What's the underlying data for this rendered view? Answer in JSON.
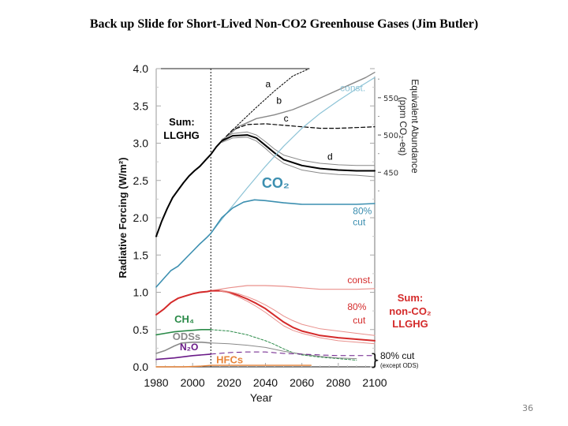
{
  "slide": {
    "title": "Back up Slide for Short-Lived Non-CO2 Greenhouse Gases  (Jim Butler)",
    "page_number": "36"
  },
  "colors": {
    "black": "#000000",
    "gray": "#888888",
    "co2": "#3c8fb0",
    "co2_light": "#8cc3d6",
    "nonco2": "#d42a2a",
    "nonco2_light": "#e9908c",
    "ch4": "#2a8a48",
    "ods": "#8a8a8a",
    "n2o": "#6a1a88",
    "hfc": "#e8853a"
  },
  "chart_data": {
    "type": "line",
    "title": "",
    "xlabel": "Year",
    "ylabel": "Radiative Forcing (W/m²)",
    "y2label": "Equivalent Abundance",
    "y2label_sub": "(ppm CO₂-eq)",
    "xlim": [
      1980,
      2100
    ],
    "ylim": [
      0.0,
      4.0
    ],
    "xticks": [
      1980,
      2000,
      2020,
      2040,
      2060,
      2080,
      2100
    ],
    "xtick_labels": [
      "1980",
      "2000",
      "2020",
      "2040",
      "2060",
      "2080",
      "2100"
    ],
    "yticks": [
      0.0,
      0.5,
      1.0,
      1.5,
      2.0,
      2.5,
      3.0,
      3.5,
      4.0
    ],
    "ytick_labels": [
      "0.0",
      "0.5",
      "1.0",
      "1.5",
      "2.0",
      "2.5",
      "3.0",
      "3.5",
      "4.0"
    ],
    "y2ticks": [
      {
        "ppm": 550,
        "rf": 3.61,
        "label": "550"
      },
      {
        "ppm": 500,
        "rf": 3.11,
        "label": "500"
      },
      {
        "ppm": 450,
        "rf": 2.61,
        "label": "450"
      }
    ],
    "vline_year": 2010,
    "series": [
      {
        "name": "Sum LLGHG (observed)",
        "color": "black",
        "width": 2,
        "dash": "",
        "x": [
          1980,
          1983,
          1986,
          1989,
          1992,
          1995,
          1998,
          2001,
          2004,
          2007,
          2010,
          2013,
          2016
        ],
        "y": [
          1.75,
          1.95,
          2.12,
          2.27,
          2.37,
          2.47,
          2.56,
          2.63,
          2.69,
          2.77,
          2.85,
          2.95,
          3.03
        ]
      },
      {
        "name": "a",
        "color": "black",
        "width": 1,
        "dash": "2,2",
        "x": [
          2016,
          2025,
          2035,
          2045,
          2055,
          2064
        ],
        "y": [
          3.03,
          3.25,
          3.48,
          3.7,
          3.9,
          4.0
        ]
      },
      {
        "name": "b",
        "color": "gray",
        "width": 1.4,
        "dash": "",
        "x": [
          2016,
          2025,
          2035,
          2045,
          2055,
          2065,
          2075,
          2085,
          2095,
          2100
        ],
        "y": [
          3.03,
          3.22,
          3.33,
          3.38,
          3.45,
          3.55,
          3.66,
          3.77,
          3.88,
          3.95
        ]
      },
      {
        "name": "c",
        "color": "black",
        "width": 1.2,
        "dash": "5,3",
        "x": [
          2016,
          2022,
          2030,
          2040,
          2050,
          2060,
          2070,
          2080,
          2090,
          2100
        ],
        "y": [
          3.03,
          3.18,
          3.25,
          3.26,
          3.24,
          3.22,
          3.2,
          3.2,
          3.21,
          3.22
        ]
      },
      {
        "name": "d",
        "color": "black",
        "width": 2,
        "dash": "",
        "x": [
          2016,
          2022,
          2030,
          2035,
          2040,
          2045,
          2050,
          2060,
          2070,
          2080,
          2090,
          2100
        ],
        "y": [
          3.03,
          3.1,
          3.11,
          3.07,
          2.97,
          2.87,
          2.78,
          2.7,
          2.66,
          2.64,
          2.63,
          2.63
        ]
      },
      {
        "name": "d upper",
        "color": "gray",
        "width": 1,
        "dash": "",
        "x": [
          2016,
          2022,
          2030,
          2035,
          2040,
          2045,
          2050,
          2060,
          2070,
          2080,
          2090,
          2100
        ],
        "y": [
          3.05,
          3.13,
          3.15,
          3.11,
          3.02,
          2.92,
          2.84,
          2.77,
          2.73,
          2.71,
          2.7,
          2.7
        ]
      },
      {
        "name": "d lower",
        "color": "gray",
        "width": 1,
        "dash": "",
        "x": [
          2016,
          2022,
          2030,
          2035,
          2040,
          2045,
          2050,
          2060,
          2070,
          2080,
          2090,
          2100
        ],
        "y": [
          3.01,
          3.07,
          3.08,
          3.03,
          2.93,
          2.82,
          2.73,
          2.64,
          2.6,
          2.58,
          2.57,
          2.55
        ]
      },
      {
        "name": "CO2 observed",
        "color": "co2",
        "width": 1.6,
        "dash": "",
        "x": [
          1980,
          1984,
          1988,
          1992,
          1996,
          2000,
          2004,
          2008,
          2010
        ],
        "y": [
          1.07,
          1.18,
          1.29,
          1.35,
          1.45,
          1.55,
          1.65,
          1.74,
          1.79
        ]
      },
      {
        "name": "CO2 const.",
        "color": "co2_light",
        "width": 1.2,
        "dash": "",
        "x": [
          2010,
          2020,
          2030,
          2040,
          2050,
          2060,
          2070,
          2080,
          2090,
          2100
        ],
        "y": [
          1.79,
          2.1,
          2.4,
          2.69,
          2.96,
          3.2,
          3.4,
          3.57,
          3.73,
          3.88
        ]
      },
      {
        "name": "CO2 80% cut",
        "color": "co2",
        "width": 1.6,
        "dash": "",
        "x": [
          2010,
          2016,
          2022,
          2028,
          2034,
          2040,
          2050,
          2060,
          2070,
          2080,
          2090,
          2100
        ],
        "y": [
          1.79,
          2.0,
          2.13,
          2.21,
          2.24,
          2.23,
          2.2,
          2.18,
          2.18,
          2.18,
          2.18,
          2.19
        ]
      },
      {
        "name": "Sum non-CO2 observed",
        "color": "nonco2",
        "width": 2,
        "dash": "",
        "x": [
          1980,
          1984,
          1988,
          1992,
          1996,
          2000,
          2004,
          2008,
          2010
        ],
        "y": [
          0.7,
          0.77,
          0.86,
          0.92,
          0.95,
          0.98,
          1.0,
          1.01,
          1.02
        ]
      },
      {
        "name": "non-CO2 const.",
        "color": "nonco2_light",
        "width": 1.2,
        "dash": "",
        "x": [
          2010,
          2020,
          2030,
          2040,
          2050,
          2060,
          2070,
          2080,
          2090,
          2100
        ],
        "y": [
          1.02,
          1.06,
          1.09,
          1.09,
          1.08,
          1.06,
          1.04,
          1.04,
          1.04,
          1.05
        ]
      },
      {
        "name": "non-CO2 80% cut",
        "color": "nonco2",
        "width": 2,
        "dash": "",
        "x": [
          2010,
          2015,
          2020,
          2025,
          2030,
          2035,
          2040,
          2045,
          2050,
          2055,
          2060,
          2070,
          2080,
          2090,
          2100
        ],
        "y": [
          1.02,
          1.02,
          1.0,
          0.96,
          0.91,
          0.85,
          0.78,
          0.69,
          0.6,
          0.53,
          0.48,
          0.42,
          0.39,
          0.37,
          0.35
        ]
      },
      {
        "name": "non-CO2 80% cut upper",
        "color": "nonco2_light",
        "width": 1,
        "dash": "",
        "x": [
          2015,
          2020,
          2025,
          2030,
          2035,
          2040,
          2045,
          2050,
          2055,
          2060,
          2070,
          2080,
          2090,
          2100
        ],
        "y": [
          1.03,
          1.01,
          0.98,
          0.94,
          0.89,
          0.83,
          0.76,
          0.68,
          0.62,
          0.57,
          0.51,
          0.48,
          0.45,
          0.42
        ]
      },
      {
        "name": "non-CO2 80% cut lower",
        "color": "nonco2_light",
        "width": 1,
        "dash": "",
        "x": [
          2015,
          2020,
          2025,
          2030,
          2035,
          2040,
          2045,
          2050,
          2055,
          2060,
          2070,
          2080,
          2090,
          2100
        ],
        "y": [
          1.02,
          0.99,
          0.94,
          0.88,
          0.81,
          0.73,
          0.64,
          0.55,
          0.49,
          0.45,
          0.39,
          0.35,
          0.33,
          0.31
        ]
      },
      {
        "name": "CH4",
        "color": "ch4",
        "width": 1.6,
        "dash": "",
        "x": [
          1980,
          1985,
          1990,
          1995,
          2000,
          2005,
          2010
        ],
        "y": [
          0.43,
          0.45,
          0.47,
          0.48,
          0.49,
          0.5,
          0.5
        ]
      },
      {
        "name": "CH4 projection",
        "color": "ch4",
        "width": 1,
        "dash": "3,2",
        "x": [
          2010,
          2020,
          2030,
          2040,
          2045,
          2050,
          2055,
          2060,
          2070,
          2080,
          2090
        ],
        "y": [
          0.5,
          0.48,
          0.43,
          0.35,
          0.3,
          0.24,
          0.19,
          0.16,
          0.13,
          0.11,
          0.09
        ]
      },
      {
        "name": "ODSs",
        "color": "ods",
        "width": 1.6,
        "dash": "",
        "x": [
          1980,
          1985,
          1990,
          1994,
          2000,
          2005,
          2010
        ],
        "y": [
          0.18,
          0.22,
          0.28,
          0.32,
          0.33,
          0.33,
          0.32
        ]
      },
      {
        "name": "ODSs projection",
        "color": "ods",
        "width": 1,
        "dash": "",
        "x": [
          2010,
          2020,
          2030,
          2040,
          2050,
          2060,
          2070,
          2080,
          2090
        ],
        "y": [
          0.32,
          0.31,
          0.29,
          0.26,
          0.21,
          0.17,
          0.14,
          0.12,
          0.11
        ]
      },
      {
        "name": "N2O",
        "color": "n2o",
        "width": 1.6,
        "dash": "",
        "x": [
          1980,
          1990,
          2000,
          2010
        ],
        "y": [
          0.1,
          0.12,
          0.15,
          0.17
        ]
      },
      {
        "name": "N2O projection",
        "color": "n2o",
        "width": 1,
        "dash": "6,5",
        "x": [
          2010,
          2020,
          2030,
          2040,
          2050,
          2060,
          2070,
          2080,
          2090,
          2100
        ],
        "y": [
          0.17,
          0.19,
          0.2,
          0.2,
          0.18,
          0.17,
          0.16,
          0.15,
          0.15,
          0.15
        ]
      },
      {
        "name": "HFCs",
        "color": "hfc",
        "width": 1.4,
        "dash": "",
        "x": [
          1980,
          1995,
          2005,
          2010,
          2030,
          2050,
          2065
        ],
        "y": [
          0.0,
          0.0,
          0.01,
          0.02,
          0.02,
          0.02,
          0.02
        ]
      }
    ],
    "annotations": [
      {
        "text": "a",
        "x": 2040,
        "y": 3.75,
        "color": "black",
        "size": 12,
        "bold": false
      },
      {
        "text": "b",
        "x": 2046,
        "y": 3.53,
        "color": "black",
        "size": 12,
        "bold": false
      },
      {
        "text": "c",
        "x": 2050,
        "y": 3.29,
        "color": "black",
        "size": 12,
        "bold": false
      },
      {
        "text": "d",
        "x": 2074,
        "y": 2.78,
        "color": "black",
        "size": 12,
        "bold": false
      },
      {
        "text": "const.",
        "x": 2081,
        "y": 3.7,
        "color": "co2_light",
        "size": 12,
        "bold": false
      },
      {
        "text": "Sum:",
        "x": 1987,
        "y": 3.24,
        "color": "black",
        "size": 13,
        "bold": true
      },
      {
        "text": "LLGHG",
        "x": 1984,
        "y": 3.06,
        "color": "black",
        "size": 13,
        "bold": true
      },
      {
        "text": "CO₂",
        "x": 2038,
        "y": 2.4,
        "color": "co2",
        "size": 18,
        "bold": true
      },
      {
        "text": "80%",
        "x": 2088,
        "y": 2.05,
        "color": "co2",
        "size": 12,
        "bold": false
      },
      {
        "text": "cut",
        "x": 2088,
        "y": 1.9,
        "color": "co2",
        "size": 12,
        "bold": false
      },
      {
        "text": "const.",
        "x": 2085,
        "y": 1.12,
        "color": "nonco2",
        "size": 12,
        "bold": false
      },
      {
        "text": "80%",
        "x": 2085,
        "y": 0.76,
        "color": "nonco2",
        "size": 12,
        "bold": false
      },
      {
        "text": "cut",
        "x": 2088,
        "y": 0.58,
        "color": "nonco2",
        "size": 12,
        "bold": false
      },
      {
        "text": "CH₄",
        "x": 1990,
        "y": 0.59,
        "color": "ch4",
        "size": 13,
        "bold": true
      },
      {
        "text": "ODSs",
        "x": 1989,
        "y": 0.36,
        "color": "ods",
        "size": 13,
        "bold": true
      },
      {
        "text": "N₂O",
        "x": 1993,
        "y": 0.22,
        "color": "n2o",
        "size": 12,
        "bold": true
      },
      {
        "text": "HFCs",
        "x": 2013,
        "y": 0.05,
        "color": "hfc",
        "size": 13,
        "bold": true
      }
    ],
    "side_labels": {
      "sum_nonco2": [
        "Sum:",
        "non-CO₂",
        "LLGHG"
      ],
      "cut_note": "80% cut",
      "cut_note_sub": "(except ODS)"
    }
  }
}
